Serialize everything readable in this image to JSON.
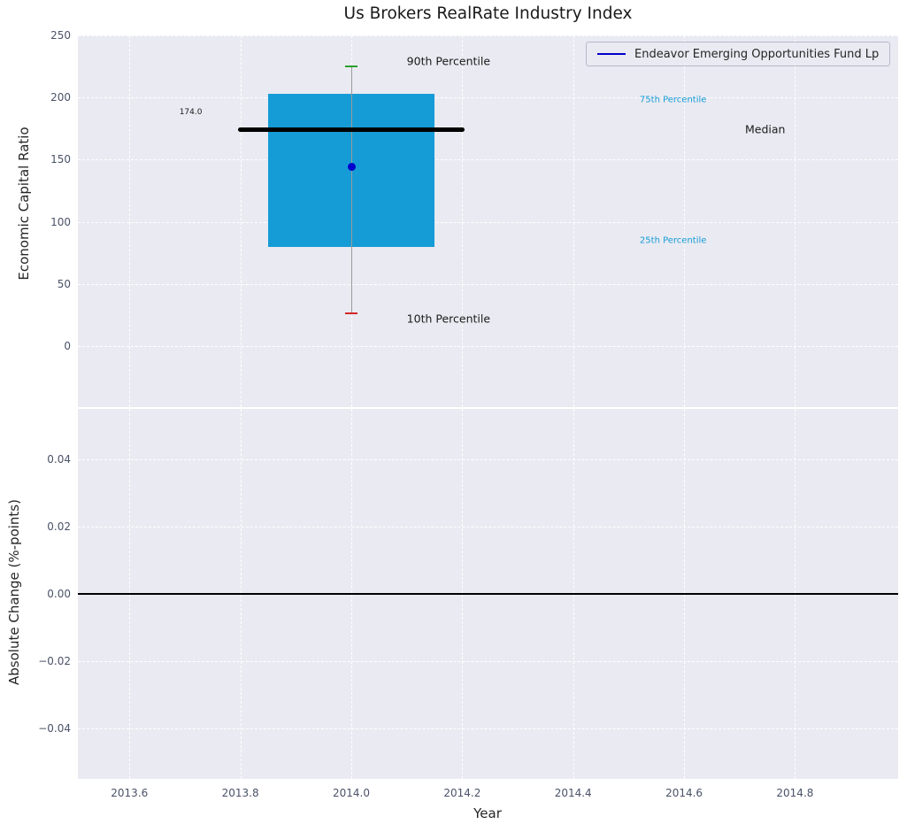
{
  "figure": {
    "title": "Us Brokers RealRate Industry Index",
    "legend_label": "Endeavor Emerging Opportunities Fund Lp"
  },
  "colors": {
    "plot_bg": "#eaeaf2",
    "grid": "#ffffff",
    "box": "#159cd6",
    "median_line": "#000000",
    "whisker": "#9b9b9b",
    "cap_90th": "#2ca02c",
    "cap_10th": "#d62728",
    "fund_dot": "#0000cc",
    "legend_line": "#0000cc",
    "percentile_text": "#159cd6",
    "tick_label": "#4a5268",
    "zero_line": "#000000"
  },
  "chart_data": [
    {
      "type": "box",
      "subplot": "top",
      "title": "Us Brokers RealRate Industry Index",
      "ylabel": "Economic Capital Ratio",
      "ylim": [
        -49.2,
        250
      ],
      "xlim": [
        2013.507,
        2014.986
      ],
      "grid": true,
      "yticks": [
        {
          "v": 0,
          "label": "0"
        },
        {
          "v": 50,
          "label": "50"
        },
        {
          "v": 100,
          "label": "100"
        },
        {
          "v": 150,
          "label": "150"
        },
        {
          "v": 200,
          "label": "200"
        },
        {
          "v": 250,
          "label": "250"
        }
      ],
      "xticks": [
        {
          "v": 2013.6,
          "label": "2013.6"
        },
        {
          "v": 2013.8,
          "label": "2013.8"
        },
        {
          "v": 2014.0,
          "label": "2014.0"
        },
        {
          "v": 2014.2,
          "label": "2014.2"
        },
        {
          "v": 2014.4,
          "label": "2014.4"
        },
        {
          "v": 2014.6,
          "label": "2014.6"
        },
        {
          "v": 2014.8,
          "label": "2014.8"
        }
      ],
      "box": {
        "x": 2014.0,
        "box_width": 0.3,
        "median_width": 0.41,
        "p10": 26,
        "p25": 80,
        "median": 174,
        "p75": 203,
        "p90": 225
      },
      "median_label": "174.0",
      "fund_point": {
        "x": 2014.0,
        "value": 144
      },
      "legend": {
        "label": "Endeavor Emerging Opportunities Fund Lp",
        "position": "upper right"
      },
      "annotations": [
        {
          "text": "90th Percentile",
          "x": 2014.1,
          "y": 229,
          "color": "#1a1a1a",
          "size": 12.5
        },
        {
          "text": "10th Percentile",
          "x": 2014.1,
          "y": 22,
          "color": "#1a1a1a",
          "size": 12.5
        },
        {
          "text": "75th Percentile",
          "x": 2014.52,
          "y": 198,
          "color": "#159cd6",
          "size": 10
        },
        {
          "text": "25th Percentile",
          "x": 2014.52,
          "y": 85,
          "color": "#159cd6",
          "size": 10
        },
        {
          "text": "Median",
          "x": 2014.71,
          "y": 174.5,
          "color": "#1a1a1a",
          "size": 12.5
        },
        {
          "text": "174.0",
          "x": 2013.69,
          "y": 188,
          "color": "#1a1a1a",
          "size": 9
        }
      ]
    },
    {
      "type": "line",
      "subplot": "bottom",
      "ylabel": "Absolute Change (%-points)",
      "xlabel": "Year",
      "ylim": [
        -0.055,
        0.055
      ],
      "xlim": [
        2013.507,
        2014.986
      ],
      "grid": true,
      "yticks": [
        {
          "v": 0.04,
          "label": "0.04"
        },
        {
          "v": 0.02,
          "label": "0.02"
        },
        {
          "v": 0.0,
          "label": "0.00"
        },
        {
          "v": -0.02,
          "label": "−0.02"
        },
        {
          "v": -0.04,
          "label": "−0.04"
        }
      ],
      "xticks": [
        {
          "v": 2013.6,
          "label": "2013.6"
        },
        {
          "v": 2013.8,
          "label": "2013.8"
        },
        {
          "v": 2014.0,
          "label": "2014.0"
        },
        {
          "v": 2014.2,
          "label": "2014.2"
        },
        {
          "v": 2014.4,
          "label": "2014.4"
        },
        {
          "v": 2014.6,
          "label": "2014.6"
        },
        {
          "v": 2014.8,
          "label": "2014.8"
        }
      ],
      "zero_line": 0.0,
      "series": []
    }
  ]
}
